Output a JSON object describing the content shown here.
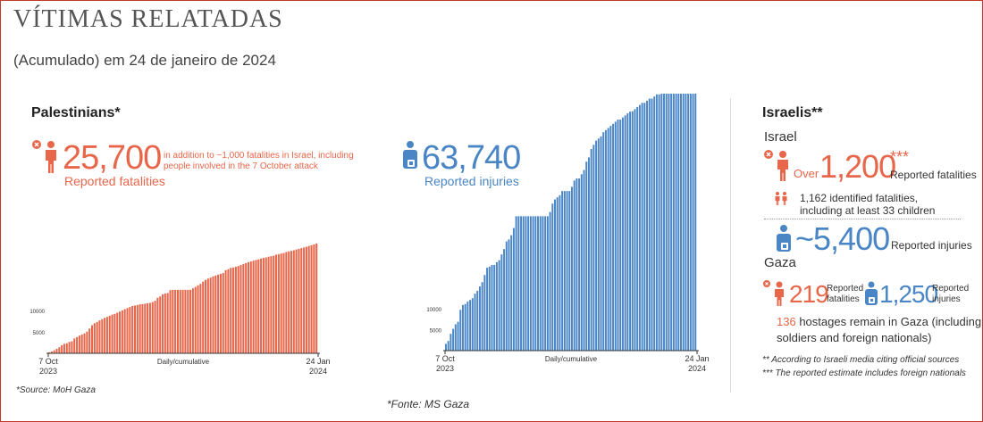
{
  "header": {
    "title": "VÍTIMAS RELATADAS",
    "subtitle": "(Acumulado) em 24 de janeiro de 2024"
  },
  "palestinians": {
    "heading": "Palestinians*",
    "fatalities_value": "25,700",
    "fatalities_note_line1": "in addition to ~1,000 fatalities in Israel, including",
    "fatalities_note_line2": "people involved in the 7 October attack",
    "fatalities_label": "Reported fatalities",
    "injuries_value": "63,740",
    "injuries_label": "Reported injuries",
    "source": "*Source: MoH Gaza"
  },
  "israelis": {
    "heading": "Israelis**",
    "israel_label": "Israel",
    "over_label": "Over",
    "fatalities_value": "1,200",
    "fatalities_asterisks": "***",
    "fatalities_label": "Reported fatalities",
    "identified_line1": "1,162 identified fatalities,",
    "identified_line2": "including at least 33 children",
    "injuries_value": "~5,400",
    "injuries_label": "Reported injuries",
    "gaza_label": "Gaza",
    "gaza_fatalities_value": "219",
    "gaza_fatalities_label_line1": "Reported",
    "gaza_fatalities_label_line2": "fatalities",
    "gaza_injuries_value": "1,250",
    "gaza_injuries_label_line1": "Reported",
    "gaza_injuries_label_line2": "injuries",
    "hostages_number": "136",
    "hostages_line1": "hostages remain in Gaza (including",
    "hostages_line2": "soldiers and foreign nationals)",
    "footnote1": "** According to Israeli media citing official sources",
    "footnote2": "*** The reported estimate includes foreign nationals"
  },
  "footer": {
    "source": "*Fonte: MS Gaza"
  },
  "colors": {
    "fatalities": "#e8664a",
    "injuries": "#4a86c5",
    "frame": "#c0392b"
  },
  "icons": [
    "person-fatality-icon",
    "person-injury-icon",
    "children-icon"
  ],
  "chart_data": [
    {
      "type": "bar",
      "name": "",
      "xlabel": "Daily/cumulative",
      "x_start_label": [
        "7 Oct",
        "2023"
      ],
      "x_end_label": [
        "24 Jan",
        "2024"
      ],
      "yticks": [
        5000,
        10000
      ],
      "ylim": [
        0,
        30000
      ],
      "color": "#e8664a",
      "values": [
        232,
        413,
        700,
        1055,
        1417,
        1900,
        2215,
        2329,
        2670,
        2808,
        3478,
        3785,
        4137,
        4385,
        4651,
        5087,
        5791,
        6546,
        7028,
        7326,
        7703,
        8005,
        8306,
        8525,
        8796,
        9061,
        9227,
        9488,
        9770,
        10022,
        10328,
        10569,
        10818,
        11078,
        11180,
        11320,
        11470,
        11500,
        11600,
        11700,
        11800,
        12000,
        12300,
        13000,
        13300,
        13800,
        14000,
        14100,
        14800,
        14854,
        14854,
        14854,
        14854,
        14854,
        14854,
        14854,
        14854,
        15207,
        15523,
        15899,
        16248,
        16780,
        17177,
        17487,
        17700,
        17997,
        18205,
        18412,
        18608,
        18787,
        19453,
        19667,
        20000,
        20057,
        20258,
        20424,
        20674,
        20915,
        21110,
        21320,
        21507,
        21672,
        21822,
        21978,
        22185,
        22313,
        22438,
        22600,
        22722,
        22835,
        23084,
        23210,
        23357,
        23469,
        23708,
        23843,
        23968,
        24100,
        24285,
        24448,
        24620,
        24762,
        24927,
        25105,
        25295,
        25490,
        25700
      ]
    },
    {
      "type": "bar",
      "name": "",
      "xlabel": "Daily/cumulative",
      "x_start_label": [
        "7 Oct",
        "2023"
      ],
      "x_end_label": [
        "24 Jan",
        "2024"
      ],
      "yticks": [
        5000,
        10000
      ],
      "ylim": [
        0,
        65000
      ],
      "color": "#4a86c5",
      "values": [
        1610,
        2300,
        4000,
        5184,
        6268,
        6868,
        9714,
        10859,
        11100,
        11700,
        12065,
        12493,
        13561,
        14245,
        15273,
        16297,
        18000,
        19734,
        20000,
        20400,
        20400,
        21048,
        21543,
        22911,
        24173,
        26000,
        26475,
        27490,
        29200,
        32000,
        32000,
        32000,
        32000,
        32000,
        32000,
        32000,
        32000,
        32000,
        32000,
        32000,
        32000,
        32000,
        32000,
        33000,
        35000,
        36000,
        36500,
        37000,
        38000,
        38000,
        38000,
        38000,
        39000,
        40500,
        41000,
        41000,
        42000,
        43000,
        45000,
        46000,
        48000,
        49000,
        50000,
        50500,
        51000,
        52000,
        52500,
        53000,
        53500,
        54000,
        54500,
        55000,
        55000,
        55500,
        56000,
        56500,
        56900,
        57000,
        57500,
        58000,
        58500,
        59000,
        59000,
        59500,
        60000,
        60000,
        60500,
        61000,
        61000,
        61200,
        61500,
        61800,
        62000,
        62300,
        62500,
        62700,
        63000,
        63000,
        63200,
        63300,
        63400,
        63500,
        63600,
        63740
      ]
    }
  ]
}
